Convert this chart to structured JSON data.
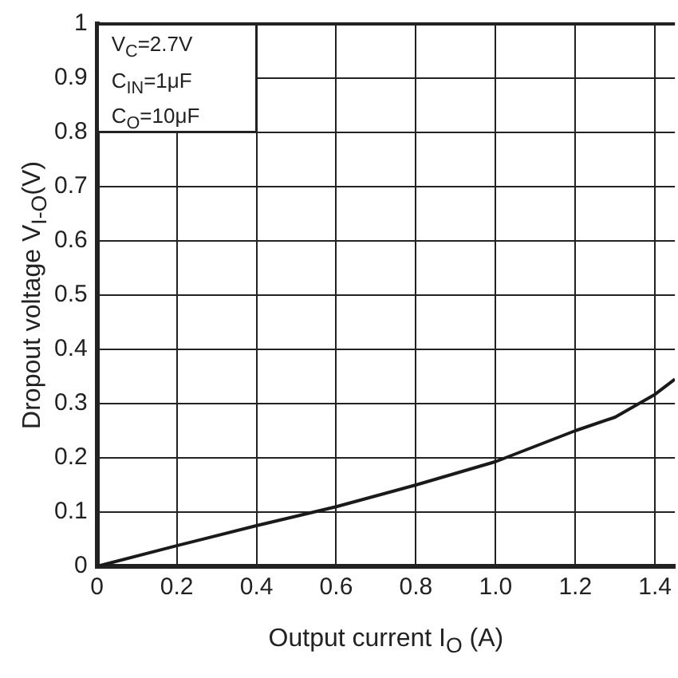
{
  "chart_data": {
    "type": "line",
    "xlabel": "Output current I$_{O}$ (A)",
    "ylabel": "Dropout voltage V$_{I-O}$(V)",
    "annotations": [
      "V$_{C}$=2.7V",
      "C$_{IN}$=1μF",
      "C$_{O}$=10μF"
    ],
    "x": [
      0,
      0.2,
      0.4,
      0.6,
      0.8,
      1.0,
      1.2,
      1.3,
      1.4,
      1.45
    ],
    "series": [
      {
        "color": "#1a1a1a",
        "values": [
          0,
          0.038,
          0.075,
          0.11,
          0.15,
          0.193,
          0.25,
          0.275,
          0.317,
          0.345
        ]
      }
    ],
    "xlim": [
      0,
      1.45
    ],
    "xticks": [
      0,
      0.2,
      0.4,
      0.6,
      0.8,
      {
        "value": 1,
        "label": "1.0"
      },
      1.2,
      1.4
    ],
    "ylim": [
      0,
      1
    ],
    "yticks": [
      0,
      0.1,
      0.2,
      0.3,
      0.4,
      0.5,
      0.6,
      0.7,
      0.8,
      0.9,
      1
    ],
    "grid": true,
    "legend": false,
    "marker": "none",
    "line_style": "solid"
  }
}
